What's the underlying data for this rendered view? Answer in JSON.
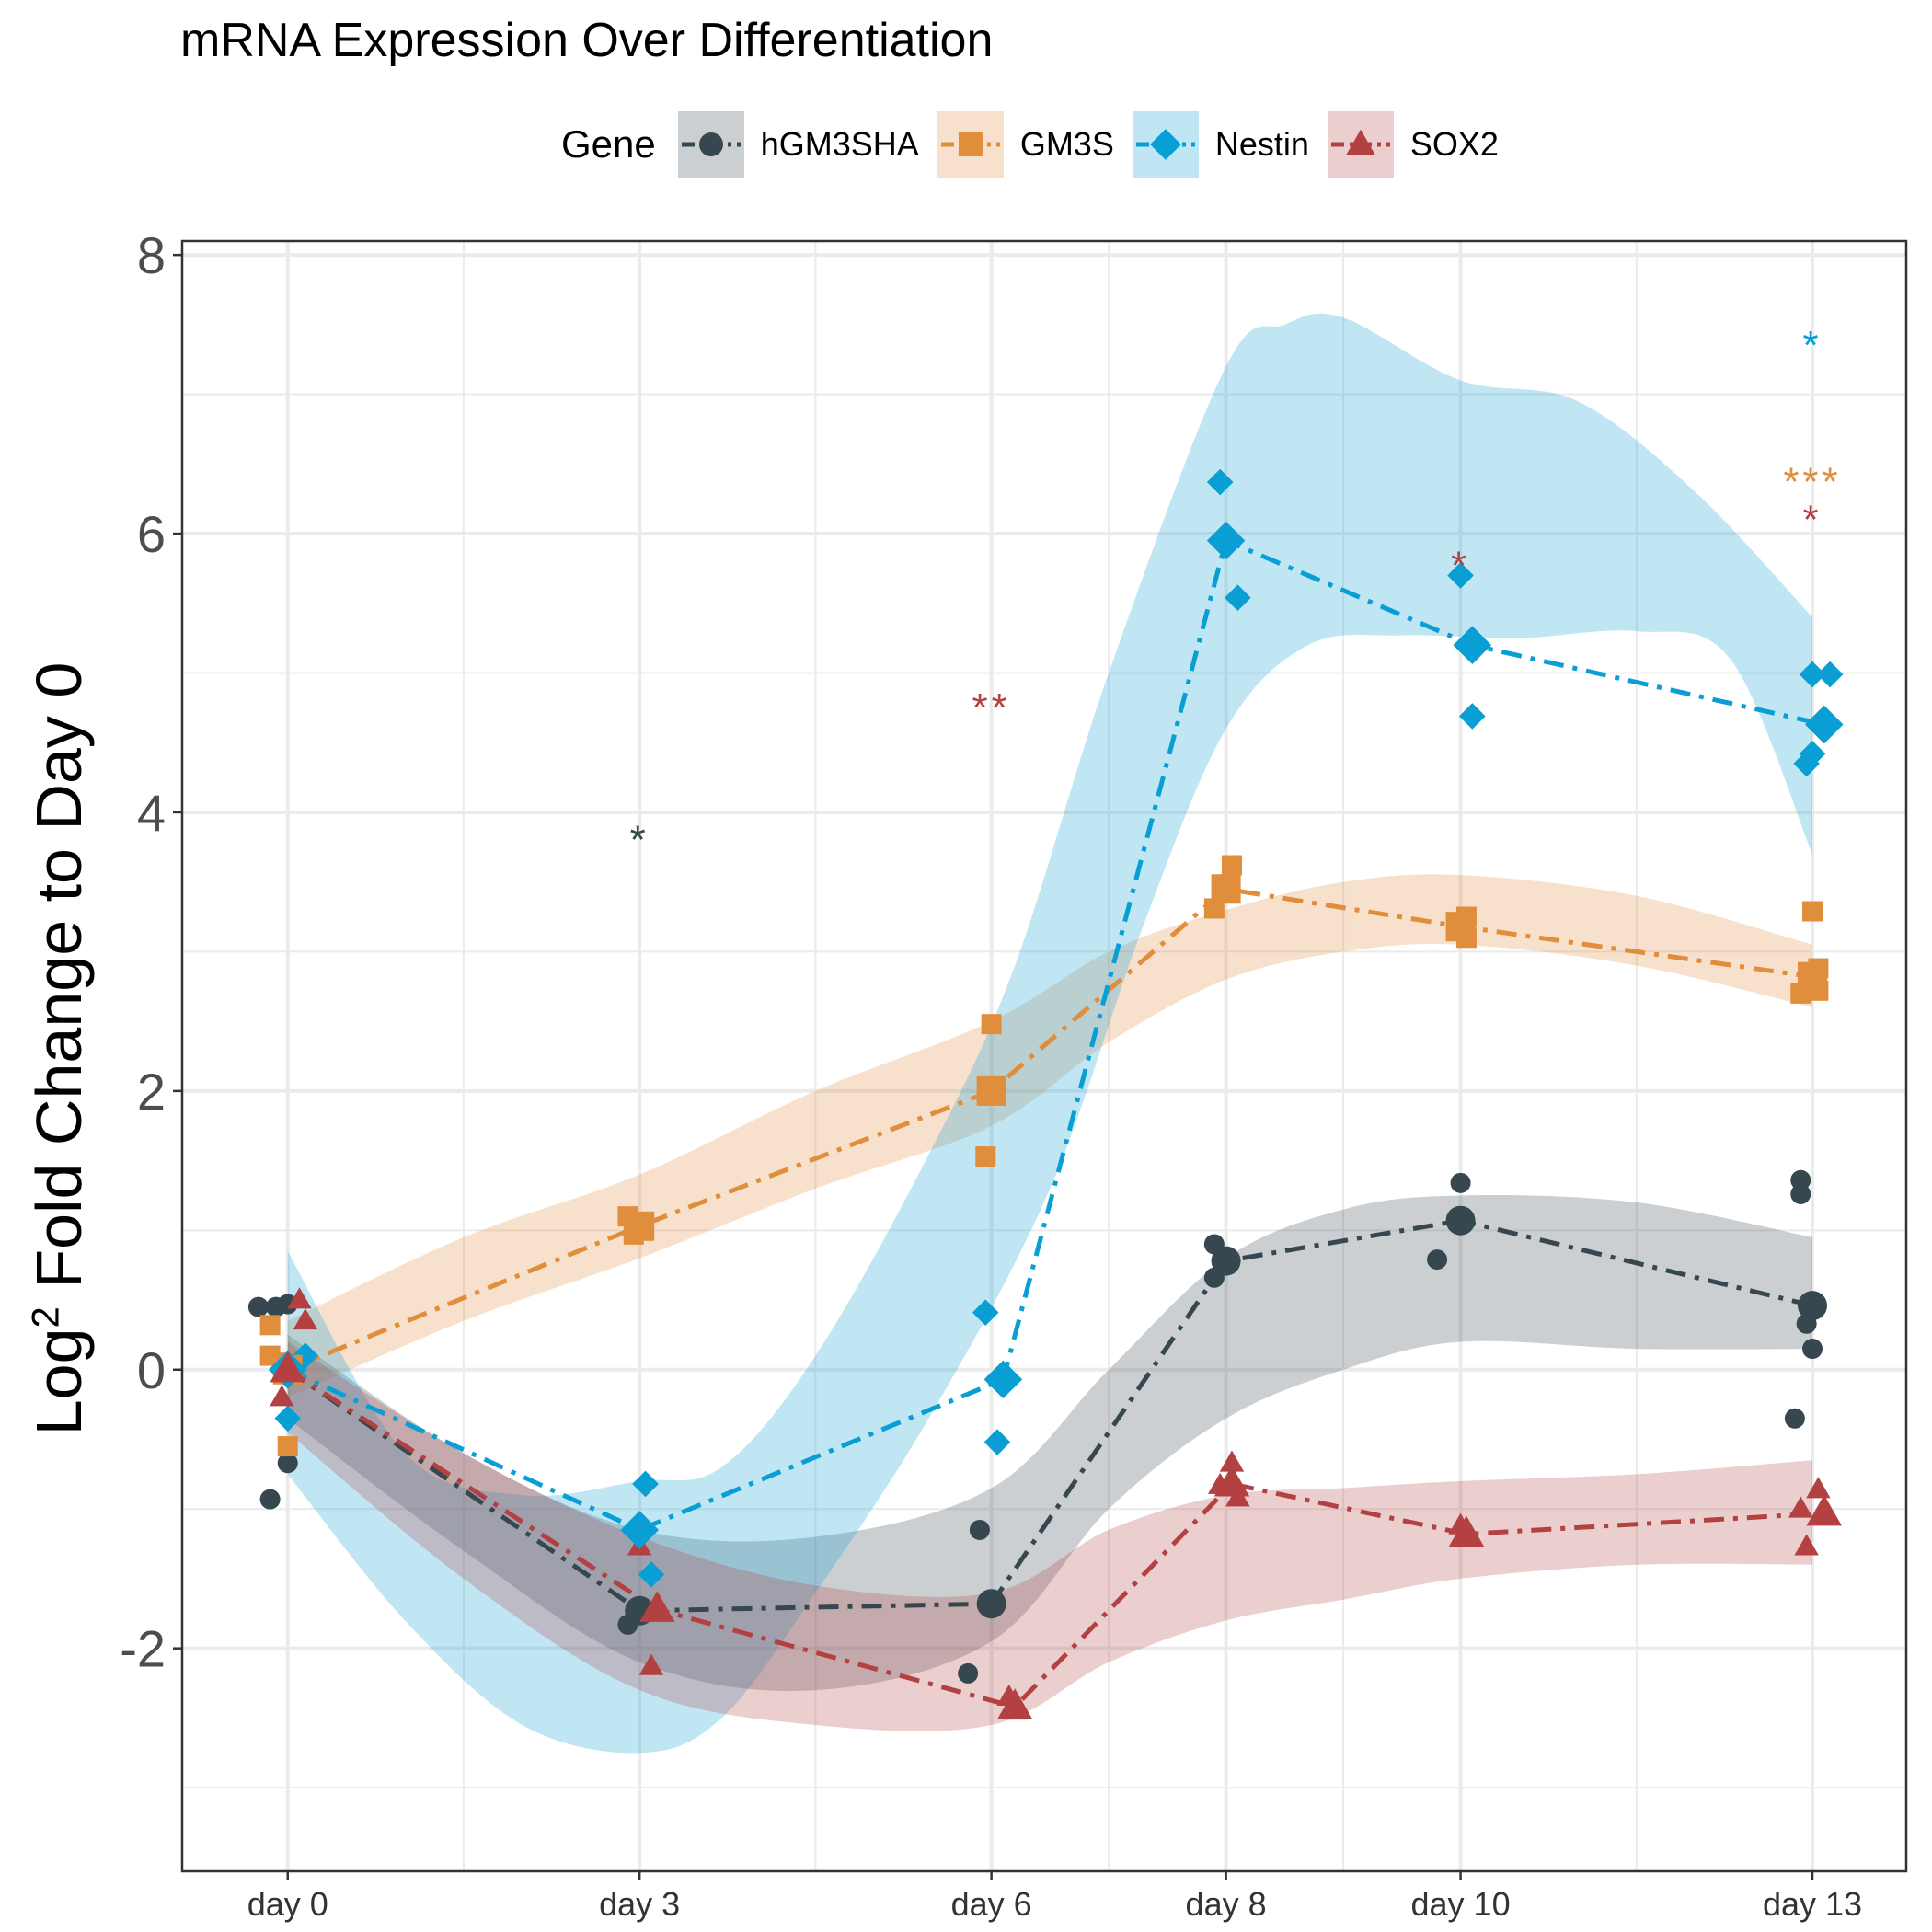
{
  "chart_data": {
    "type": "line",
    "title": "mRNA Expression Over Differentiation",
    "xlabel": "",
    "ylabel_prefix": "Log",
    "ylabel_sup": "2",
    "ylabel_rest": " Fold Change to Day 0",
    "legend_title": "Gene",
    "legend_position": "top",
    "grid": true,
    "ylim": [
      -3.6,
      8.1
    ],
    "xlim": [
      -0.9,
      13.8
    ],
    "x_ticks": [
      {
        "x": 0,
        "label": "day 0"
      },
      {
        "x": 3,
        "label": "day 3"
      },
      {
        "x": 6,
        "label": "day 6"
      },
      {
        "x": 8,
        "label": "day 8"
      },
      {
        "x": 10,
        "label": "day 10"
      },
      {
        "x": 13,
        "label": "day 13"
      }
    ],
    "y_ticks": [
      {
        "y": -2,
        "label": "-2"
      },
      {
        "y": 0,
        "label": "0"
      },
      {
        "y": 2,
        "label": "2"
      },
      {
        "y": 4,
        "label": "4"
      },
      {
        "y": 6,
        "label": "6"
      },
      {
        "y": 8,
        "label": "8"
      }
    ],
    "series": [
      {
        "name": "hGM3SHA",
        "color": "#37474f",
        "marker": "circle",
        "mean": [
          [
            0,
            0
          ],
          [
            3,
            -1.73
          ],
          [
            6,
            -1.68
          ],
          [
            8,
            0.78
          ],
          [
            10,
            1.07
          ],
          [
            13,
            0.46
          ]
        ],
        "band_lower": [
          [
            0,
            -0.35
          ],
          [
            1.5,
            -1.3
          ],
          [
            3,
            -2.1
          ],
          [
            4.5,
            -2.3
          ],
          [
            6,
            -1.95
          ],
          [
            7,
            -1.0
          ],
          [
            8,
            -0.35
          ],
          [
            9,
            0.0
          ],
          [
            10,
            0.2
          ],
          [
            11.5,
            0.15
          ],
          [
            13,
            0.15
          ]
        ],
        "band_upper": [
          [
            0,
            0.25
          ],
          [
            1.5,
            -0.6
          ],
          [
            3,
            -1.15
          ],
          [
            4.5,
            -1.2
          ],
          [
            6,
            -0.85
          ],
          [
            7,
            0.0
          ],
          [
            8,
            0.8
          ],
          [
            9,
            1.15
          ],
          [
            10,
            1.25
          ],
          [
            11.5,
            1.2
          ],
          [
            13,
            0.95
          ]
        ],
        "replicates": [
          [
            -0.25,
            0.45
          ],
          [
            -0.1,
            0.45
          ],
          [
            0,
            0.47
          ],
          [
            -0.15,
            -0.93
          ],
          [
            0,
            -0.67
          ],
          [
            2.9,
            -1.83
          ],
          [
            3.0,
            -1.75
          ],
          [
            5.9,
            -1.15
          ],
          [
            5.8,
            -2.18
          ],
          [
            7.9,
            0.9
          ],
          [
            7.9,
            0.66
          ],
          [
            10,
            1.34
          ],
          [
            9.8,
            0.79
          ],
          [
            12.9,
            1.36
          ],
          [
            12.9,
            1.26
          ],
          [
            12.95,
            0.33
          ],
          [
            13,
            0.15
          ],
          [
            12.85,
            -0.35
          ]
        ]
      },
      {
        "name": "GM3S",
        "color": "#e08d3c",
        "marker": "square",
        "mean": [
          [
            0,
            0
          ],
          [
            3,
            1.03
          ],
          [
            6,
            2.0
          ],
          [
            8,
            3.45
          ],
          [
            10,
            3.18
          ],
          [
            13,
            2.82
          ]
        ],
        "band_lower": [
          [
            0,
            -0.2
          ],
          [
            1.5,
            0.35
          ],
          [
            3,
            0.8
          ],
          [
            4.5,
            1.3
          ],
          [
            6,
            1.75
          ],
          [
            7,
            2.35
          ],
          [
            8,
            2.8
          ],
          [
            9,
            3.0
          ],
          [
            10,
            3.05
          ],
          [
            11.5,
            2.9
          ],
          [
            13,
            2.6
          ]
        ],
        "band_upper": [
          [
            0,
            0.35
          ],
          [
            1.5,
            0.95
          ],
          [
            3,
            1.4
          ],
          [
            4.5,
            2.0
          ],
          [
            6,
            2.5
          ],
          [
            7,
            3.0
          ],
          [
            8,
            3.3
          ],
          [
            9,
            3.5
          ],
          [
            10,
            3.55
          ],
          [
            11.5,
            3.4
          ],
          [
            13,
            3.05
          ]
        ],
        "replicates": [
          [
            -0.15,
            0.32
          ],
          [
            -0.15,
            0.1
          ],
          [
            0,
            0.05
          ],
          [
            0,
            -0.55
          ],
          [
            2.9,
            1.1
          ],
          [
            2.95,
            0.97
          ],
          [
            6,
            2.48
          ],
          [
            5.95,
            1.53
          ],
          [
            7.9,
            3.31
          ],
          [
            8.05,
            3.62
          ],
          [
            10.05,
            3.25
          ],
          [
            10.05,
            3.1
          ],
          [
            13,
            3.29
          ],
          [
            13.05,
            2.88
          ],
          [
            12.9,
            2.7
          ],
          [
            13.05,
            2.72
          ]
        ]
      },
      {
        "name": "Nestin",
        "color": "#0a9fd4",
        "marker": "diamond",
        "mean": [
          [
            0,
            0
          ],
          [
            3,
            -1.15
          ],
          [
            6.1,
            -0.07
          ],
          [
            8,
            5.95
          ],
          [
            10.1,
            5.2
          ],
          [
            13.1,
            4.63
          ]
        ],
        "band_lower": [
          [
            0,
            -0.75
          ],
          [
            1,
            -1.8
          ],
          [
            2,
            -2.55
          ],
          [
            3,
            -2.75
          ],
          [
            3.7,
            -2.5
          ],
          [
            4.5,
            -1.6
          ],
          [
            5.5,
            -0.3
          ],
          [
            6.5,
            1.3
          ],
          [
            7.3,
            3.2
          ],
          [
            8,
            4.6
          ],
          [
            8.7,
            5.2
          ],
          [
            9.5,
            5.27
          ],
          [
            10.5,
            5.25
          ],
          [
            11.5,
            5.3
          ],
          [
            12.3,
            5.1
          ],
          [
            13,
            3.7
          ]
        ],
        "band_upper": [
          [
            0,
            0.85
          ],
          [
            1,
            -0.6
          ],
          [
            2,
            -0.9
          ],
          [
            3,
            -0.8
          ],
          [
            3.7,
            -0.7
          ],
          [
            4.5,
            0.1
          ],
          [
            5.5,
            1.6
          ],
          [
            6.2,
            2.9
          ],
          [
            7,
            5.0
          ],
          [
            8,
            7.2
          ],
          [
            8.5,
            7.5
          ],
          [
            9,
            7.55
          ],
          [
            10,
            7.1
          ],
          [
            11,
            6.95
          ],
          [
            12,
            6.3
          ],
          [
            13,
            5.4
          ]
        ],
        "replicates": [
          [
            0,
            -0.35
          ],
          [
            0.15,
            0.1
          ],
          [
            3.05,
            -0.82
          ],
          [
            3.1,
            -1.47
          ],
          [
            5.95,
            0.41
          ],
          [
            6.05,
            -0.52
          ],
          [
            7.95,
            6.37
          ],
          [
            8.1,
            5.54
          ],
          [
            10,
            5.7
          ],
          [
            10.1,
            4.69
          ],
          [
            13,
            4.99
          ],
          [
            13.15,
            4.99
          ],
          [
            12.95,
            4.35
          ],
          [
            13,
            4.42
          ]
        ]
      },
      {
        "name": "SOX2",
        "color": "#b34141",
        "marker": "triangle",
        "mean": [
          [
            0,
            0
          ],
          [
            3.15,
            -1.72
          ],
          [
            6.2,
            -2.42
          ],
          [
            8.05,
            -0.82
          ],
          [
            10.05,
            -1.18
          ],
          [
            13.1,
            -1.03
          ]
        ],
        "band_lower": [
          [
            0,
            -0.45
          ],
          [
            1.5,
            -1.5
          ],
          [
            3,
            -2.3
          ],
          [
            4.5,
            -2.55
          ],
          [
            6,
            -2.55
          ],
          [
            7,
            -2.1
          ],
          [
            8,
            -1.8
          ],
          [
            9,
            -1.65
          ],
          [
            10,
            -1.5
          ],
          [
            11.5,
            -1.4
          ],
          [
            13,
            -1.4
          ]
        ],
        "band_upper": [
          [
            0,
            0.2
          ],
          [
            1.5,
            -0.6
          ],
          [
            3,
            -1.2
          ],
          [
            4.5,
            -1.55
          ],
          [
            6,
            -1.6
          ],
          [
            7,
            -1.15
          ],
          [
            8,
            -0.9
          ],
          [
            9,
            -0.85
          ],
          [
            10,
            -0.8
          ],
          [
            11.5,
            -0.75
          ],
          [
            13,
            -0.65
          ]
        ],
        "replicates": [
          [
            0.1,
            0.5
          ],
          [
            0.15,
            0.35
          ],
          [
            -0.05,
            -0.2
          ],
          [
            3,
            -1.27
          ],
          [
            3.1,
            -2.13
          ],
          [
            6.15,
            -2.35
          ],
          [
            6.2,
            -2.45
          ],
          [
            8.05,
            -0.67
          ],
          [
            7.95,
            -0.83
          ],
          [
            8.1,
            -0.92
          ],
          [
            10,
            -1.12
          ],
          [
            10.05,
            -1.2
          ],
          [
            13.05,
            -0.86
          ],
          [
            13.1,
            -1.03
          ],
          [
            12.95,
            -1.27
          ],
          [
            12.9,
            -1.0
          ]
        ]
      }
    ],
    "annotations": [
      {
        "x": 3,
        "y": 3.85,
        "text": "*",
        "color": "#37474f"
      },
      {
        "x": 6,
        "y": 4.8,
        "text": "**",
        "color": "#b34141"
      },
      {
        "x": 10,
        "y": 5.82,
        "text": "*",
        "color": "#b34141"
      },
      {
        "x": 13,
        "y": 7.4,
        "text": "*",
        "color": "#0a9fd4"
      },
      {
        "x": 13,
        "y": 6.42,
        "text": "***",
        "color": "#e08d3c"
      },
      {
        "x": 13,
        "y": 6.15,
        "text": "*",
        "color": "#b34141"
      }
    ]
  }
}
